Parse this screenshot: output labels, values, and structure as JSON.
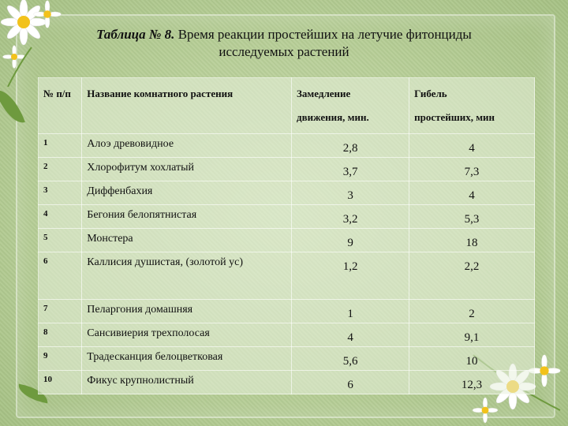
{
  "title": {
    "bold": "Таблица № 8.",
    "rest": " Время реакции простейших на летучие фитонциды",
    "line2": "исследуемых растений"
  },
  "header": {
    "num": "№ п/п",
    "name": "Название комнатного растения",
    "col1_line1": "Замедление",
    "col1_line2": "движения, мин.",
    "col2_line1": "Гибель",
    "col2_line2": "простейших, мин"
  },
  "rows": [
    {
      "num": "1",
      "name": "Алоэ древовидное",
      "v1": "2,8",
      "v2": "4"
    },
    {
      "num": "2",
      "name": "Хлорофитум хохлатый",
      "v1": "3,7",
      "v2": "7,3"
    },
    {
      "num": "3",
      "name": "Диффенбахия",
      "v1": "3",
      "v2": "4"
    },
    {
      "num": "4",
      "name": "Бегония белопятнистая",
      "v1": "3,2",
      "v2": "5,3"
    },
    {
      "num": "5",
      "name": "Монстера",
      "v1": "9",
      "v2": "18"
    },
    {
      "num": "6",
      "name": "Каллисия душистая, (золотой ус)",
      "v1": "1,2",
      "v2": "2,2"
    },
    {
      "num": "7",
      "name": "Пеларгония домашняя",
      "v1": "1",
      "v2": "2"
    },
    {
      "num": "8",
      "name": "Сансивиерия трехполосая",
      "v1": "4",
      "v2": "9,1"
    },
    {
      "num": "9",
      "name": "Традесканция белоцветковая",
      "v1": "5,6",
      "v2": "10"
    },
    {
      "num": "10",
      "name": "Фикус крупнолистный",
      "v1": "6",
      "v2": "12,3"
    }
  ],
  "colors": {
    "background": "#b8cf98",
    "daisy_petal": "#ffffff",
    "daisy_center": "#f2c21b",
    "leaf": "#6e9a3e"
  }
}
